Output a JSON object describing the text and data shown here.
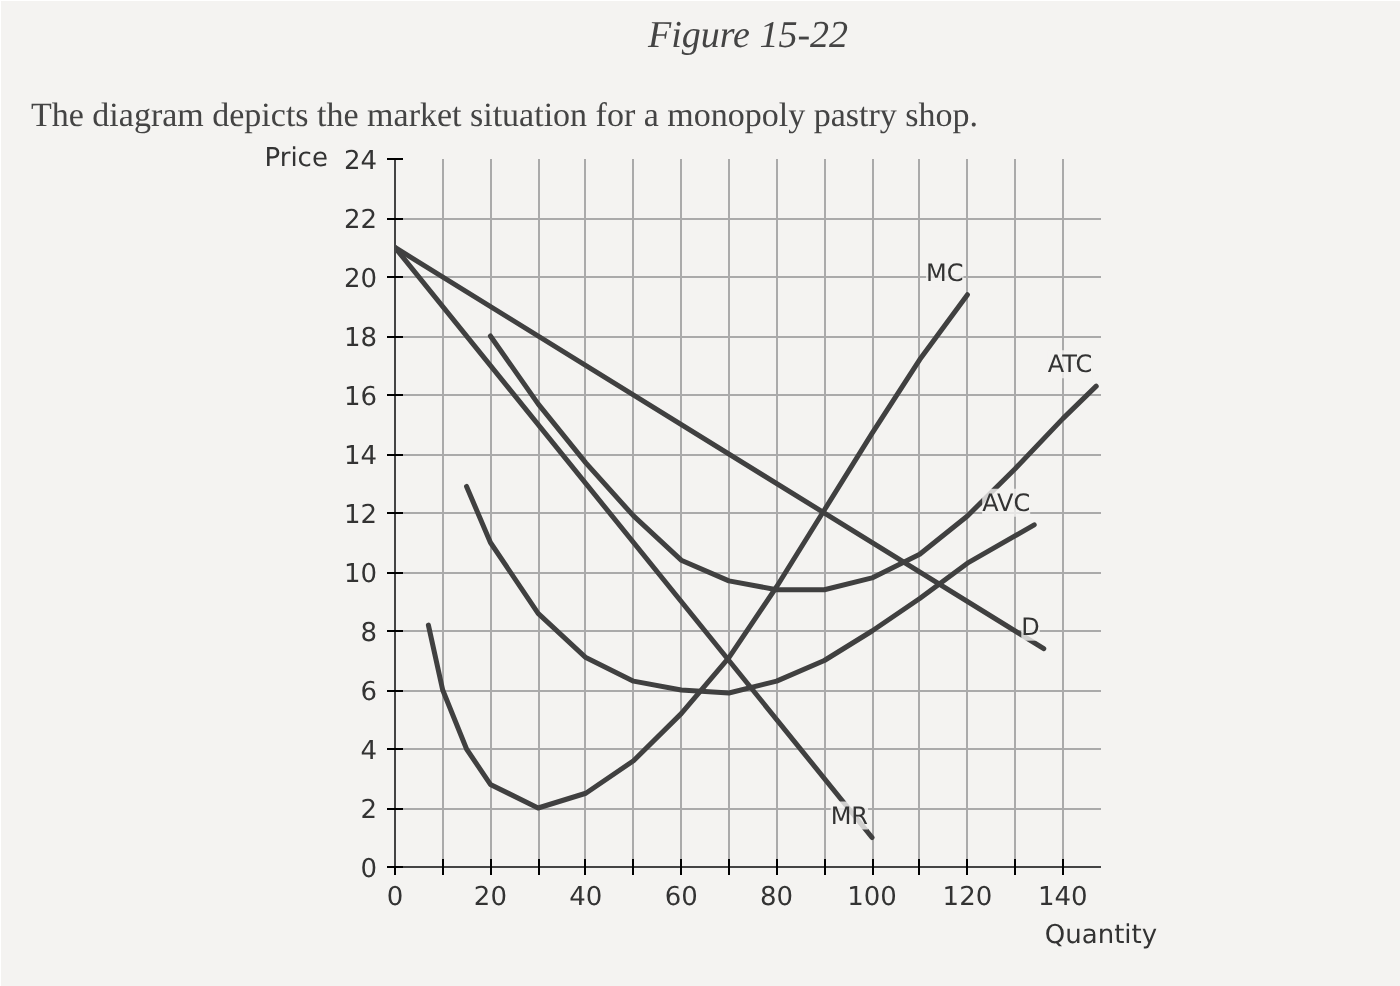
{
  "chart_data": {
    "type": "line",
    "title": "Figure 15-22",
    "subtitle": "The diagram depicts the market situation for a monopoly pastry shop.",
    "xlabel": "Quantity",
    "ylabel": "Price",
    "xlim": [
      0,
      148
    ],
    "ylim": [
      0,
      24
    ],
    "xticks": [
      0,
      {
        "value": 10,
        "label": null
      },
      20,
      {
        "value": 30,
        "label": null
      },
      40,
      {
        "value": 50,
        "label": null
      },
      60,
      {
        "value": 70,
        "label": null
      },
      80,
      {
        "value": 90,
        "label": null
      },
      100,
      {
        "value": 110,
        "label": null
      },
      120,
      {
        "value": 130,
        "label": null
      },
      140
    ],
    "yticks": [
      0,
      2,
      4,
      6,
      8,
      10,
      12,
      14,
      16,
      18,
      20,
      22,
      24
    ],
    "grid": true,
    "marker": "none",
    "line_style": "solid",
    "series": [
      {
        "name": "MC",
        "color": "#404040",
        "x": [
          7,
          10,
          15,
          20,
          30,
          40,
          50,
          60,
          70,
          80,
          90,
          100,
          110,
          120
        ],
        "values": [
          8.2,
          6,
          4,
          2.8,
          2,
          2.5,
          3.6,
          5.2,
          7.1,
          9.5,
          12.1,
          14.7,
          17.2,
          19.4
        ]
      },
      {
        "name": "ATC",
        "color": "#404040",
        "x": [
          20,
          30,
          40,
          50,
          60,
          70,
          80,
          90,
          100,
          110,
          120,
          130,
          140,
          147
        ],
        "values": [
          18,
          15.7,
          13.7,
          11.9,
          10.4,
          9.7,
          9.4,
          9.4,
          9.8,
          10.6,
          11.9,
          13.5,
          15.2,
          16.3
        ]
      },
      {
        "name": "AVC",
        "color": "#404040",
        "x": [
          15,
          20,
          30,
          40,
          50,
          60,
          70,
          80,
          90,
          100,
          110,
          120,
          134
        ],
        "values": [
          12.9,
          11,
          8.6,
          7.1,
          6.3,
          6,
          5.9,
          6.3,
          7,
          8,
          9.1,
          10.3,
          11.6
        ]
      },
      {
        "name": "D",
        "color": "#404040",
        "x": [
          0,
          136
        ],
        "values": [
          21,
          7.4
        ]
      },
      {
        "name": "MR",
        "color": "#404040",
        "x": [
          0,
          100
        ],
        "values": [
          21,
          1
        ]
      }
    ]
  }
}
